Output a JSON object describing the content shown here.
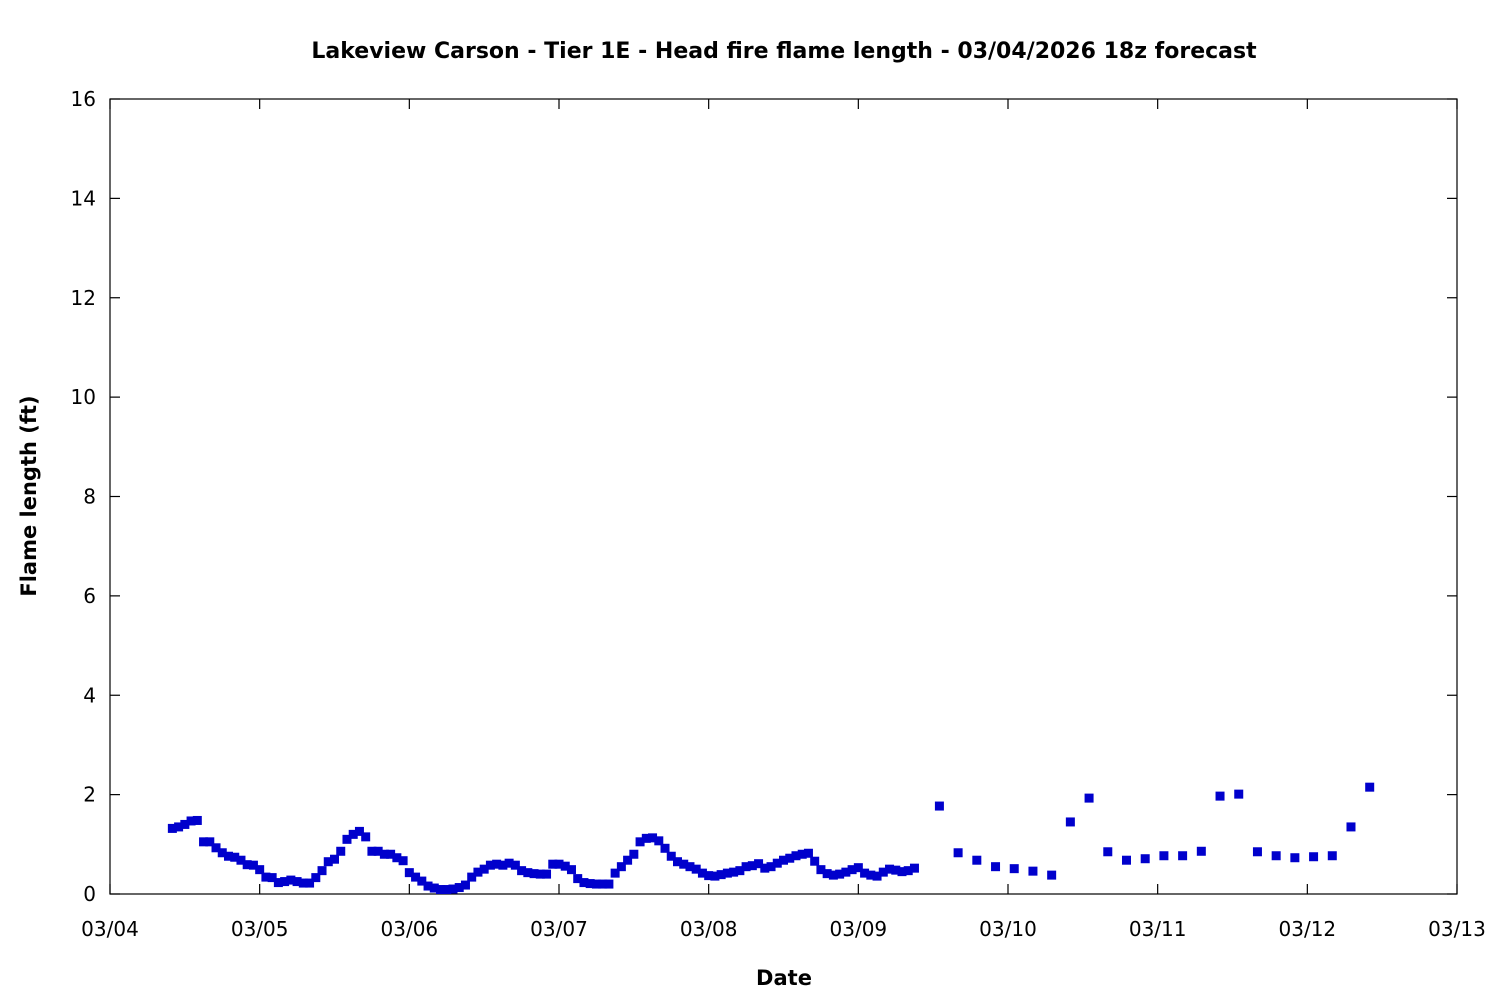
{
  "chart_data": {
    "type": "scatter",
    "title": "Lakeview Carson - Tier 1E - Head fire flame length - 03/04/2026 18z forecast",
    "xlabel": "Date",
    "ylabel": "Flame length (ft)",
    "x_range_days": [
      0,
      9
    ],
    "x_ticks": [
      "03/04",
      "03/05",
      "03/06",
      "03/07",
      "03/08",
      "03/09",
      "03/10",
      "03/11",
      "03/12",
      "03/13"
    ],
    "ylim": [
      0,
      16
    ],
    "y_ticks": [
      "0",
      "2",
      "4",
      "6",
      "8",
      "10",
      "12",
      "14",
      "16"
    ],
    "grid": false,
    "marker_color": "#0000cc",
    "series": [
      {
        "hourly_start_day": 0.4167,
        "hourly_step_day": 0.041667,
        "hourly_values": [
          1.32,
          1.35,
          1.4,
          1.47,
          1.48,
          1.05,
          1.05,
          0.93,
          0.83,
          0.76,
          0.74,
          0.68,
          0.59,
          0.58,
          0.49,
          0.34,
          0.33,
          0.23,
          0.25,
          0.28,
          0.25,
          0.22,
          0.22,
          0.33,
          0.47,
          0.65,
          0.7,
          0.86,
          1.1,
          1.2,
          1.26,
          1.15,
          0.86,
          0.86,
          0.8,
          0.8,
          0.73,
          0.67,
          0.43,
          0.34,
          0.26,
          0.16,
          0.12,
          0.09,
          0.09,
          0.1,
          0.13,
          0.18,
          0.34,
          0.44,
          0.5,
          0.58,
          0.6,
          0.58,
          0.62,
          0.58,
          0.47,
          0.43,
          0.41,
          0.4,
          0.4,
          0.6,
          0.6,
          0.56,
          0.49,
          0.31,
          0.23,
          0.21,
          0.2,
          0.2,
          0.2,
          0.42,
          0.55,
          0.68,
          0.8,
          1.05,
          1.12,
          1.13,
          1.07,
          0.92,
          0.76,
          0.65,
          0.6,
          0.55,
          0.5,
          0.42,
          0.37,
          0.36,
          0.39,
          0.42,
          0.44,
          0.47,
          0.55,
          0.57,
          0.61,
          0.52,
          0.55,
          0.62,
          0.68,
          0.72,
          0.77,
          0.8,
          0.82,
          0.66,
          0.49,
          0.41,
          0.38,
          0.4,
          0.44,
          0.49,
          0.53,
          0.42,
          0.38,
          0.36,
          0.44,
          0.5,
          0.48,
          0.45,
          0.47,
          0.52
        ],
        "sparse_x_days": [
          5.5417,
          5.6667,
          5.7917,
          5.9167,
          6.0417,
          6.1667,
          6.2917,
          6.4167,
          6.5417,
          6.6667,
          6.7917,
          6.9167,
          7.0417,
          7.1667,
          7.2917,
          7.4167,
          7.5417,
          7.6667,
          7.7917,
          7.9167,
          8.0417,
          8.1667,
          8.2917,
          8.4167
        ],
        "sparse_values": [
          1.77,
          0.83,
          0.68,
          0.55,
          0.51,
          0.46,
          0.38,
          1.45,
          1.93,
          0.85,
          0.68,
          0.71,
          0.77,
          0.77,
          0.86,
          1.97,
          2.01,
          0.85,
          0.77,
          0.73,
          0.75,
          0.77,
          1.35,
          2.15
        ]
      }
    ]
  }
}
